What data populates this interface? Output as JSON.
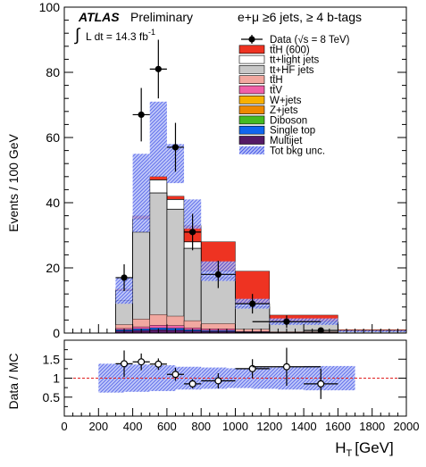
{
  "chart_data": {
    "type": "bar",
    "labels": {
      "atlas": "ATLAS",
      "preliminary": "Preliminary",
      "lumi_prefix": "L dt = 14.3 fb",
      "lumi_exp": "-1",
      "selection": "e+μ  ≥6 jets, ≥ 4 b-tags"
    },
    "xlabel_main": "H",
    "xlabel_sub": "T",
    "xlabel_unit": "[GeV]",
    "ylabel": "Events / 100 GeV",
    "ratio_ylabel": "Data / MC",
    "xlim": [
      0,
      2000
    ],
    "ylim": [
      0,
      100
    ],
    "ratio_ylim": [
      0,
      2
    ],
    "x_ticks": [
      "0",
      "200",
      "400",
      "600",
      "800",
      "1000",
      "1200",
      "1400",
      "1600",
      "1800",
      "2000"
    ],
    "y_ticks": [
      "0",
      "20",
      "40",
      "60",
      "80",
      "100"
    ],
    "ratio_y_ticks": [
      "0.5",
      "1",
      "1.5"
    ],
    "bin_edges": [
      300,
      400,
      500,
      600,
      700,
      800,
      1000,
      1200,
      1600,
      2000
    ],
    "stack_tops": {
      "multijet": [
        0.6,
        0.8,
        1.0,
        0.9,
        0.6,
        0.5,
        0.2,
        0.1,
        0.0
      ],
      "single_top": [
        1.0,
        1.3,
        1.6,
        1.5,
        1.0,
        0.8,
        0.3,
        0.1,
        0.0
      ],
      "ttv": [
        1.4,
        1.9,
        2.4,
        2.3,
        1.6,
        1.3,
        0.5,
        0.2,
        0.0
      ],
      "tth": [
        2.6,
        4.3,
        5.7,
        5.2,
        3.8,
        2.9,
        1.2,
        0.4,
        0.0
      ],
      "tt_hf": [
        10.0,
        31.0,
        43.0,
        38.0,
        26.0,
        17.0,
        8.0,
        3.0,
        0.6
      ],
      "tt_light": [
        13.0,
        35.0,
        47.0,
        41.0,
        28.0,
        19.0,
        9.0,
        3.5,
        0.7
      ],
      "tth_600": [
        13.5,
        36.0,
        48.0,
        42.0,
        33.0,
        28.0,
        19.0,
        5.5,
        1.0
      ]
    },
    "unc_band": {
      "low": [
        9,
        31,
        48,
        46,
        32,
        16,
        7.5,
        2.5,
        0.3
      ],
      "high": [
        17,
        55,
        71,
        58,
        41,
        22,
        10.5,
        4.5,
        0.8
      ]
    },
    "data_points": {
      "x": [
        350,
        450,
        550,
        650,
        750,
        900,
        1100,
        1300,
        1500
      ],
      "xerr": [
        50,
        50,
        50,
        50,
        50,
        100,
        100,
        200,
        100
      ],
      "y": [
        17,
        67,
        81,
        57,
        31,
        18,
        9,
        3.5,
        0.8
      ],
      "yerr": [
        4.1,
        8.2,
        9.0,
        7.5,
        5.6,
        4.2,
        3.0,
        1.9,
        0.9
      ]
    },
    "ratio_points": {
      "x": [
        350,
        450,
        550,
        650,
        750,
        900,
        1100,
        1300,
        1500
      ],
      "xerr": [
        50,
        50,
        50,
        50,
        50,
        100,
        100,
        200,
        100
      ],
      "y": [
        1.38,
        1.43,
        1.37,
        1.1,
        0.85,
        0.93,
        1.25,
        1.3,
        0.85
      ],
      "yerr": [
        0.35,
        0.22,
        0.15,
        0.17,
        0.12,
        0.2,
        0.25,
        0.5,
        0.4
      ]
    },
    "ratio_band": {
      "low": [
        0.62,
        0.64,
        0.66,
        0.7,
        0.72,
        0.74,
        0.72,
        0.7,
        0.68,
        0.68,
        0.66
      ],
      "high": [
        1.38,
        1.36,
        1.34,
        1.3,
        1.28,
        1.26,
        1.28,
        1.3,
        1.32,
        1.32,
        1.34
      ]
    },
    "legend": {
      "placement": "top-right",
      "entries": [
        {
          "key": "data",
          "label": "Data (√s = 8 TeV)",
          "style": "marker"
        },
        {
          "key": "tth_600",
          "label": "tt̄H (600)",
          "color": "#ee3322"
        },
        {
          "key": "tt_light",
          "label": "tt+light jets",
          "color": "#ffffff"
        },
        {
          "key": "tt_hf",
          "label": "tt+HF jets",
          "color": "#c8c8c8"
        },
        {
          "key": "tth",
          "label": "tt̄H",
          "color": "#f2a8a0"
        },
        {
          "key": "ttv",
          "label": "tt̄V",
          "color": "#f060a8"
        },
        {
          "key": "wjets",
          "label": "W+jets",
          "color": "#f8b000"
        },
        {
          "key": "zjets",
          "label": "Z+jets",
          "color": "#ee8800"
        },
        {
          "key": "diboson",
          "label": "Diboson",
          "color": "#44bb22"
        },
        {
          "key": "single_top",
          "label": "Single top",
          "color": "#1166ee"
        },
        {
          "key": "multijet",
          "label": "Multijet",
          "color": "#551a66"
        },
        {
          "key": "unc",
          "label": "Tot bkg unc.",
          "style": "hatch",
          "color": "#5566ee"
        }
      ]
    }
  }
}
